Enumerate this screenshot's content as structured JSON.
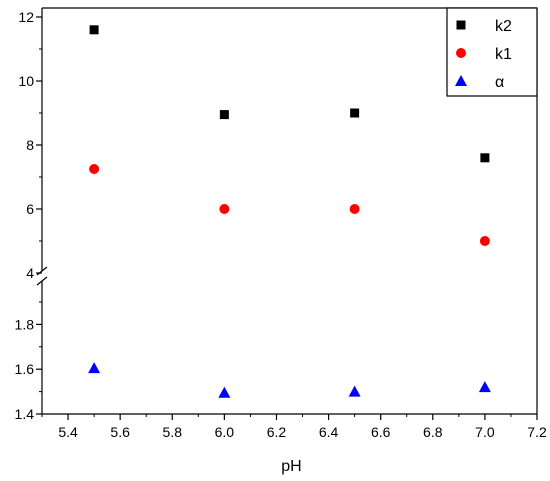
{
  "chart_data": {
    "type": "scatter",
    "xlabel": "pH",
    "ylabel": "",
    "xlim": [
      5.3,
      7.2
    ],
    "x_ticks": [
      "5.4",
      "5.6",
      "5.8",
      "6.0",
      "6.2",
      "6.4",
      "6.6",
      "6.8",
      "7.0",
      "7.2"
    ],
    "y_break": true,
    "y_upper_ylim": [
      4,
      12
    ],
    "y_upper_ticks": [
      "4",
      "6",
      "8",
      "10",
      "12"
    ],
    "y_lower_ylim": [
      1.4,
      2.0
    ],
    "y_lower_ticks": [
      "1.4",
      "1.6",
      "1.8"
    ],
    "grid": false,
    "legend_position": "top-right",
    "series": [
      {
        "name": "k2",
        "marker": "square",
        "color": "#000000",
        "panel": "upper",
        "x": [
          5.5,
          6.0,
          6.5,
          7.0
        ],
        "y": [
          11.6,
          8.95,
          9.0,
          7.6
        ]
      },
      {
        "name": "k1",
        "marker": "circle",
        "color": "#ff0000",
        "panel": "upper",
        "x": [
          5.5,
          6.0,
          6.5,
          7.0
        ],
        "y": [
          7.25,
          6.0,
          6.0,
          5.0
        ]
      },
      {
        "name": "α",
        "marker": "triangle",
        "color": "#0000ff",
        "panel": "lower",
        "x": [
          5.5,
          6.0,
          6.5,
          7.0
        ],
        "y": [
          1.605,
          1.495,
          1.5,
          1.52
        ]
      }
    ]
  }
}
